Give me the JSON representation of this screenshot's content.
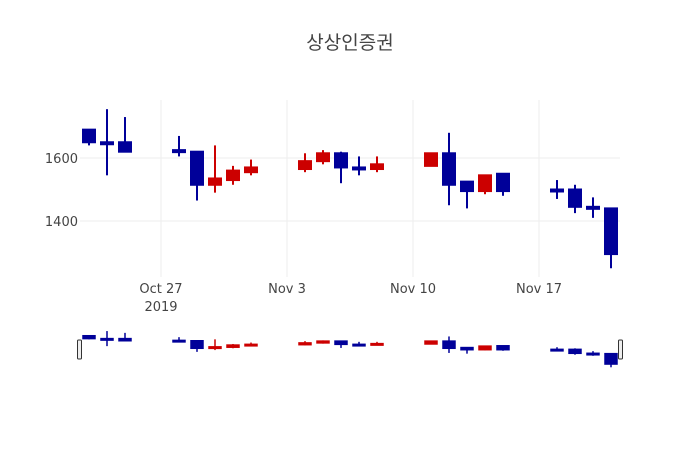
{
  "chart_data": {
    "type": "candlestick",
    "title": "상상인증권",
    "xlabel": "",
    "ylabel": "",
    "ylim": [
      1240,
      1770
    ],
    "y_ticks": [
      1400,
      1600
    ],
    "x_ticks": [
      {
        "label": "Oct 27",
        "sub": "2019",
        "date": "2019-10-27"
      },
      {
        "label": "Nov 3",
        "sub": "",
        "date": "2019-11-03"
      },
      {
        "label": "Nov 10",
        "sub": "",
        "date": "2019-11-10"
      },
      {
        "label": "Nov 17",
        "sub": "",
        "date": "2019-11-17"
      }
    ],
    "grid": true,
    "legend": false,
    "rangeslider": true,
    "increasing_color": "#cc0000",
    "decreasing_color": "#000099",
    "series": [
      {
        "date": "2019-10-23",
        "open": 1690,
        "high": 1690,
        "low": 1640,
        "close": 1650
      },
      {
        "date": "2019-10-24",
        "open": 1650,
        "high": 1755,
        "low": 1545,
        "close": 1645
      },
      {
        "date": "2019-10-25",
        "open": 1650,
        "high": 1730,
        "low": 1620,
        "close": 1620
      },
      {
        "date": "2019-10-28",
        "open": 1625,
        "high": 1670,
        "low": 1605,
        "close": 1620
      },
      {
        "date": "2019-10-29",
        "open": 1620,
        "high": 1620,
        "low": 1465,
        "close": 1515
      },
      {
        "date": "2019-10-30",
        "open": 1515,
        "high": 1640,
        "low": 1490,
        "close": 1535
      },
      {
        "date": "2019-10-31",
        "open": 1530,
        "high": 1575,
        "low": 1515,
        "close": 1560
      },
      {
        "date": "2019-11-01",
        "open": 1555,
        "high": 1595,
        "low": 1545,
        "close": 1570
      },
      {
        "date": "2019-11-04",
        "open": 1565,
        "high": 1615,
        "low": 1555,
        "close": 1590
      },
      {
        "date": "2019-11-05",
        "open": 1590,
        "high": 1625,
        "low": 1580,
        "close": 1615
      },
      {
        "date": "2019-11-06",
        "open": 1615,
        "high": 1620,
        "low": 1520,
        "close": 1570
      },
      {
        "date": "2019-11-07",
        "open": 1570,
        "high": 1605,
        "low": 1545,
        "close": 1565
      },
      {
        "date": "2019-11-08",
        "open": 1565,
        "high": 1605,
        "low": 1555,
        "close": 1580
      },
      {
        "date": "2019-11-11",
        "open": 1575,
        "high": 1615,
        "low": 1575,
        "close": 1615
      },
      {
        "date": "2019-11-12",
        "open": 1615,
        "high": 1680,
        "low": 1450,
        "close": 1515
      },
      {
        "date": "2019-11-13",
        "open": 1525,
        "high": 1525,
        "low": 1440,
        "close": 1495
      },
      {
        "date": "2019-11-14",
        "open": 1495,
        "high": 1545,
        "low": 1485,
        "close": 1545
      },
      {
        "date": "2019-11-15",
        "open": 1550,
        "high": 1550,
        "low": 1480,
        "close": 1495
      },
      {
        "date": "2019-11-18",
        "open": 1500,
        "high": 1530,
        "low": 1470,
        "close": 1495
      },
      {
        "date": "2019-11-19",
        "open": 1500,
        "high": 1515,
        "low": 1425,
        "close": 1445
      },
      {
        "date": "2019-11-20",
        "open": 1445,
        "high": 1475,
        "low": 1410,
        "close": 1440
      },
      {
        "date": "2019-11-21",
        "open": 1440,
        "high": 1440,
        "low": 1250,
        "close": 1295
      }
    ]
  }
}
